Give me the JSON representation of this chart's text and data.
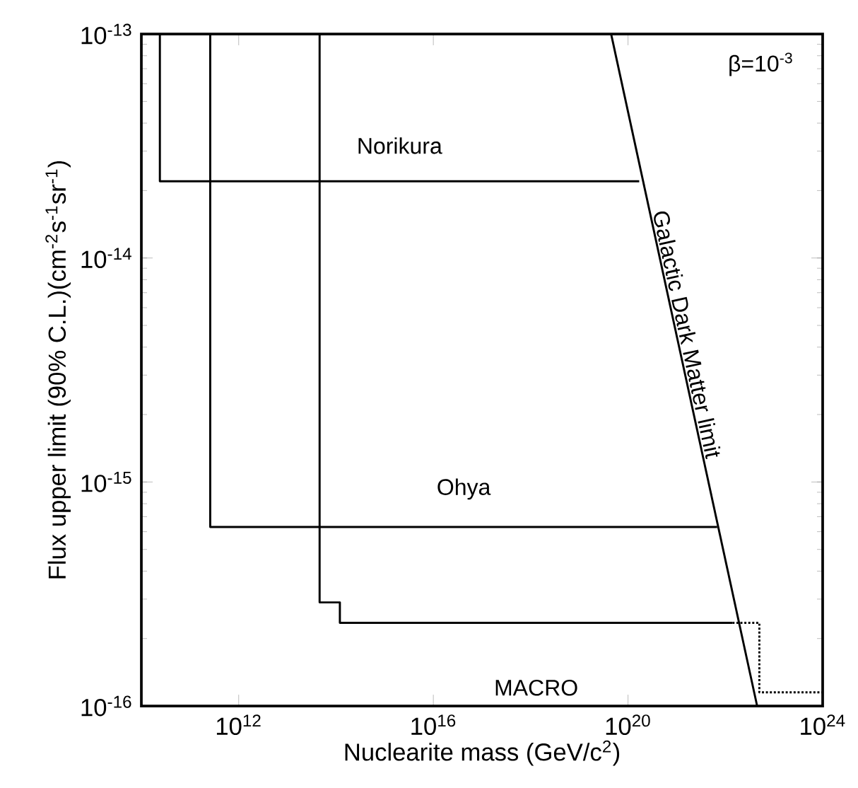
{
  "chart_data": {
    "type": "line",
    "xlabel": "Nuclearite mass (GeV/c$^{2}$)",
    "ylabel": "Flux upper limit (90% C.L.)(cm$^{-2}$s$^{-1}$sr$^{-1}$)",
    "log": "xy",
    "line_style": "solid",
    "xlim": [
      10000000000.0,
      1e+24
    ],
    "ylim": [
      1e-16,
      1e-13
    ],
    "xticks": [
      {
        "value": 1000000000000.0,
        "label": "10$^{12}$"
      },
      {
        "value": 1e+16,
        "label": "10$^{16}$"
      },
      {
        "value": 1e+20,
        "label": "10$^{20}$"
      },
      {
        "value": 1e+24,
        "label": "10$^{24}$"
      }
    ],
    "yticks": [
      {
        "value": 1e-16,
        "label": "10$^{-16}$"
      },
      {
        "value": 1e-15,
        "label": "10$^{-15}$"
      },
      {
        "value": 1e-14,
        "label": "10$^{-14}$"
      },
      {
        "value": 1e-13,
        "label": "10$^{-13}$"
      }
    ],
    "annotations": [
      "β=10$^{-3}$"
    ],
    "series": [
      {
        "name": "Norikura",
        "color": "#000000",
        "x": [
          24000000000.0,
          24000000000.0,
          1.7e+20
        ],
        "values": [
          1e-13,
          2.2e-14,
          2.2e-14
        ]
      },
      {
        "name": "Ohya",
        "color": "#000000",
        "x": [
          260000000000.0,
          260000000000.0,
          6.8e+21
        ],
        "values": [
          1e-13,
          6.3e-16,
          6.3e-16
        ]
      },
      {
        "name": "MACRO",
        "color": "#000000",
        "x": [
          46000000000000.0,
          46000000000000.0,
          120000000000000.0,
          120000000000000.0,
          1.4e+22
        ],
        "values": [
          1e-13,
          2.9e-16,
          2.9e-16,
          2.35e-16,
          2.35e-16
        ]
      },
      {
        "color": "#000000",
        "line_style": "dotted",
        "x": [
          1.4e+22,
          5e+22,
          5e+22,
          1e+24
        ],
        "values": [
          2.35e-16,
          2.35e-16,
          1.15e-16,
          1.15e-16
        ]
      },
      {
        "name": "Galactic Dark Matter limit",
        "color": "#000000",
        "x": [
          4.5e+19,
          4.5e+22
        ],
        "values": [
          1e-13,
          1e-16
        ]
      }
    ]
  }
}
